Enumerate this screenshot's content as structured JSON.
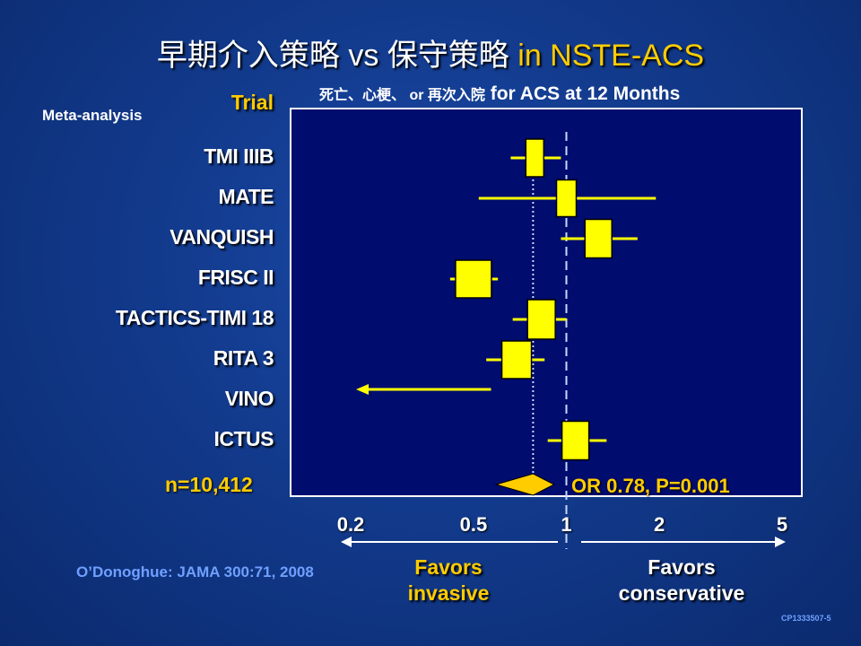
{
  "slide": {
    "title_main": "早期介入策略 vs 保守策略",
    "title_accent": " in NSTE-ACS",
    "subtitle_cn": "死亡、心梗、 or 再次入院",
    "subtitle_en": " for ACS at 12 Months",
    "meta_label": "Meta-analysis",
    "trial_header": "Trial",
    "n_label": "n=10,412",
    "citation": "O’Donoghue:  JAMA 300:71, 2008",
    "slide_code": "CP1333507-5",
    "favors_left_line1": "Favors",
    "favors_left_line2": "invasive",
    "favors_right_line1": "Favors",
    "favors_right_line2": "conservative"
  },
  "chart_data": {
    "type": "forest",
    "x_scale": "log",
    "xlim": [
      0.2,
      5
    ],
    "x_ticks": [
      {
        "value": 0.2,
        "label": "0.2"
      },
      {
        "value": 0.5,
        "label": "0.5"
      },
      {
        "value": 1,
        "label": "1"
      },
      {
        "value": 2,
        "label": "2"
      },
      {
        "value": 5,
        "label": "5"
      }
    ],
    "reference_line": 1,
    "trials": [
      {
        "name": "TMI IIIB",
        "or": 0.79,
        "ci_low": 0.66,
        "ci_high": 0.96
      },
      {
        "name": "MATE",
        "or": 1.0,
        "ci_low": 0.52,
        "ci_high": 1.95
      },
      {
        "name": "VANQUISH",
        "or": 1.27,
        "ci_low": 0.96,
        "ci_high": 1.7
      },
      {
        "name": "FRISC II",
        "or": 0.5,
        "ci_low": 0.42,
        "ci_high": 0.6
      },
      {
        "name": "TACTICS-TIMI 18",
        "or": 0.83,
        "ci_low": 0.67,
        "ci_high": 1.0
      },
      {
        "name": "RITA 3",
        "or": 0.69,
        "ci_low": 0.55,
        "ci_high": 0.85
      },
      {
        "name": "VINO",
        "or": 0.23,
        "ci_low": 0.23,
        "ci_high": 0.57,
        "arrow_left": true
      },
      {
        "name": "ICTUS",
        "or": 1.07,
        "ci_low": 0.87,
        "ci_high": 1.35
      }
    ],
    "pooled": {
      "or": 0.78,
      "ci_low": 0.6,
      "ci_high": 0.9,
      "label": "OR 0.78, P=0.001"
    },
    "colors": {
      "box": "#ffff00",
      "box_border": "#000000",
      "ci_line": "#ffff00",
      "diamond": "#ffcc00",
      "panel": "#000c6e",
      "panel_border": "#ffffff",
      "reference_line": "#c8d8ff",
      "pooled_line": "#c8d8ff"
    }
  }
}
